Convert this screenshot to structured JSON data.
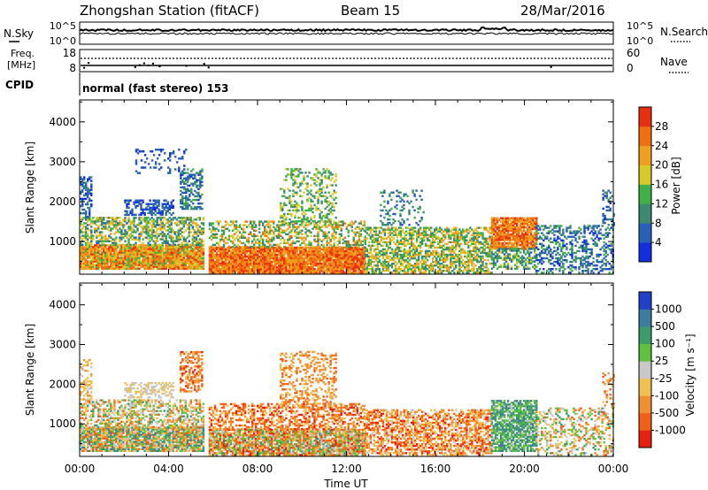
{
  "header": {
    "station": "Zhongshan Station (fitACF)",
    "beam": "Beam 15",
    "date": "28/Mar/2016"
  },
  "top_panels": {
    "noise": {
      "left_label": "N.Sky",
      "right_label": "N.Search",
      "left_ticks": [
        "10^5",
        "10^0"
      ],
      "right_ticks": [
        "10^5",
        "10^0"
      ]
    },
    "freq": {
      "left_label_1": "Freq.",
      "left_label_2": "[MHz]",
      "left_ticks": [
        "18",
        "8"
      ],
      "right_label": "Nave",
      "right_ticks": [
        "60",
        "0"
      ]
    },
    "cpid": {
      "label": "CPID",
      "text": "normal (fast stereo) 153"
    }
  },
  "chart_data": [
    {
      "type": "heatmap",
      "parameter": "power",
      "xlabel": "Time UT",
      "ylabel": "Slant Range [km]",
      "x_ticks": [
        "00:00",
        "04:00",
        "08:00",
        "12:00",
        "16:00",
        "20:00",
        "00:00"
      ],
      "y_ticks": [
        1000,
        2000,
        3000,
        4000
      ],
      "ylim": [
        180,
        4550
      ],
      "colorbar_label": "Power [dB]",
      "colorbar_ticks": [
        "4",
        "8",
        "12",
        "16",
        "20",
        "24",
        "28"
      ],
      "colorbar_range": [
        0,
        32
      ],
      "colorbar_colors": [
        "#1030e0",
        "#2860b8",
        "#3c8870",
        "#40b048",
        "#d8c828",
        "#f0a020",
        "#f07010",
        "#e83010"
      ],
      "regions": [
        {
          "t0": 0.0,
          "t1": 5.6,
          "r0": 300,
          "r1": 900,
          "density": 0.95,
          "vmin": 14,
          "vmax": 30
        },
        {
          "t0": 0.0,
          "t1": 5.6,
          "r0": 900,
          "r1": 1600,
          "density": 0.55,
          "vmin": 6,
          "vmax": 22
        },
        {
          "t0": 0.0,
          "t1": 0.5,
          "r0": 1600,
          "r1": 2600,
          "density": 0.4,
          "vmin": 2,
          "vmax": 10
        },
        {
          "t0": 2.0,
          "t1": 4.2,
          "r0": 1650,
          "r1": 2050,
          "density": 0.55,
          "vmin": 2,
          "vmax": 9
        },
        {
          "t0": 4.5,
          "t1": 5.5,
          "r0": 1800,
          "r1": 2800,
          "density": 0.5,
          "vmin": 3,
          "vmax": 14
        },
        {
          "t0": 2.5,
          "t1": 4.8,
          "r0": 2700,
          "r1": 3300,
          "density": 0.15,
          "vmin": 2,
          "vmax": 8
        },
        {
          "t0": 5.8,
          "t1": 12.8,
          "r0": 200,
          "r1": 850,
          "density": 0.95,
          "vmin": 20,
          "vmax": 31
        },
        {
          "t0": 5.8,
          "t1": 12.8,
          "r0": 850,
          "r1": 1500,
          "density": 0.45,
          "vmin": 8,
          "vmax": 26
        },
        {
          "t0": 9.0,
          "t1": 11.5,
          "r0": 1400,
          "r1": 2800,
          "density": 0.3,
          "vmin": 8,
          "vmax": 20
        },
        {
          "t0": 12.8,
          "t1": 18.5,
          "r0": 200,
          "r1": 1350,
          "density": 0.6,
          "vmin": 8,
          "vmax": 24
        },
        {
          "t0": 13.5,
          "t1": 15.5,
          "r0": 1400,
          "r1": 2300,
          "density": 0.2,
          "vmin": 4,
          "vmax": 14
        },
        {
          "t0": 18.5,
          "t1": 20.5,
          "r0": 800,
          "r1": 1600,
          "density": 0.9,
          "vmin": 20,
          "vmax": 31
        },
        {
          "t0": 18.5,
          "t1": 20.5,
          "r0": 300,
          "r1": 800,
          "density": 0.5,
          "vmin": 6,
          "vmax": 18
        },
        {
          "t0": 20.5,
          "t1": 24.0,
          "r0": 200,
          "r1": 1400,
          "density": 0.35,
          "vmin": 2,
          "vmax": 14
        },
        {
          "t0": 23.5,
          "t1": 24.0,
          "r0": 1400,
          "r1": 2300,
          "density": 0.3,
          "vmin": 2,
          "vmax": 10
        }
      ]
    },
    {
      "type": "heatmap",
      "parameter": "velocity",
      "xlabel": "Time UT",
      "ylabel": "Slant Range [km]",
      "x_ticks": [
        "00:00",
        "04:00",
        "08:00",
        "12:00",
        "16:00",
        "20:00",
        "00:00"
      ],
      "y_ticks": [
        1000,
        2000,
        3000,
        4000
      ],
      "ylim": [
        180,
        4550
      ],
      "colorbar_label": "Velocity [m s⁻¹]",
      "colorbar_ticks": [
        "1000",
        "500",
        "100",
        "25",
        "-25",
        "-100",
        "-500",
        "-1000"
      ],
      "colorbar_colors": [
        "#2040c8",
        "#3c7c9c",
        "#3c9c6c",
        "#60c040",
        "#c8c8c8",
        "#f0c050",
        "#f09030",
        "#f06018",
        "#e82010"
      ],
      "regions": [
        {
          "t0": 0.0,
          "t1": 5.6,
          "r0": 300,
          "r1": 900,
          "density": 0.9,
          "vmin": 1,
          "vmax": 7
        },
        {
          "t0": 0.0,
          "t1": 5.6,
          "r0": 900,
          "r1": 1600,
          "density": 0.5,
          "vmin": 2,
          "vmax": 7
        },
        {
          "t0": 0.0,
          "t1": 0.5,
          "r0": 1600,
          "r1": 2600,
          "density": 0.4,
          "vmin": 4,
          "vmax": 6
        },
        {
          "t0": 2.0,
          "t1": 4.2,
          "r0": 1650,
          "r1": 2050,
          "density": 0.5,
          "vmin": 4,
          "vmax": 5
        },
        {
          "t0": 4.5,
          "t1": 5.5,
          "r0": 1800,
          "r1": 2800,
          "density": 0.5,
          "vmin": 5,
          "vmax": 8
        },
        {
          "t0": 5.8,
          "t1": 12.8,
          "r0": 200,
          "r1": 850,
          "density": 0.9,
          "vmin": 2,
          "vmax": 8
        },
        {
          "t0": 5.8,
          "t1": 12.8,
          "r0": 850,
          "r1": 1500,
          "density": 0.45,
          "vmin": 5,
          "vmax": 8
        },
        {
          "t0": 9.0,
          "t1": 11.5,
          "r0": 1400,
          "r1": 2800,
          "density": 0.3,
          "vmin": 5,
          "vmax": 7
        },
        {
          "t0": 12.8,
          "t1": 18.5,
          "r0": 200,
          "r1": 1350,
          "density": 0.6,
          "vmin": 4,
          "vmax": 8
        },
        {
          "t0": 18.5,
          "t1": 20.5,
          "r0": 300,
          "r1": 1600,
          "density": 0.8,
          "vmin": 1,
          "vmax": 4
        },
        {
          "t0": 20.5,
          "t1": 24.0,
          "r0": 200,
          "r1": 1400,
          "density": 0.35,
          "vmin": 2,
          "vmax": 7
        },
        {
          "t0": 23.5,
          "t1": 24.0,
          "r0": 1400,
          "r1": 2300,
          "density": 0.3,
          "vmin": 5,
          "vmax": 7
        }
      ]
    }
  ]
}
